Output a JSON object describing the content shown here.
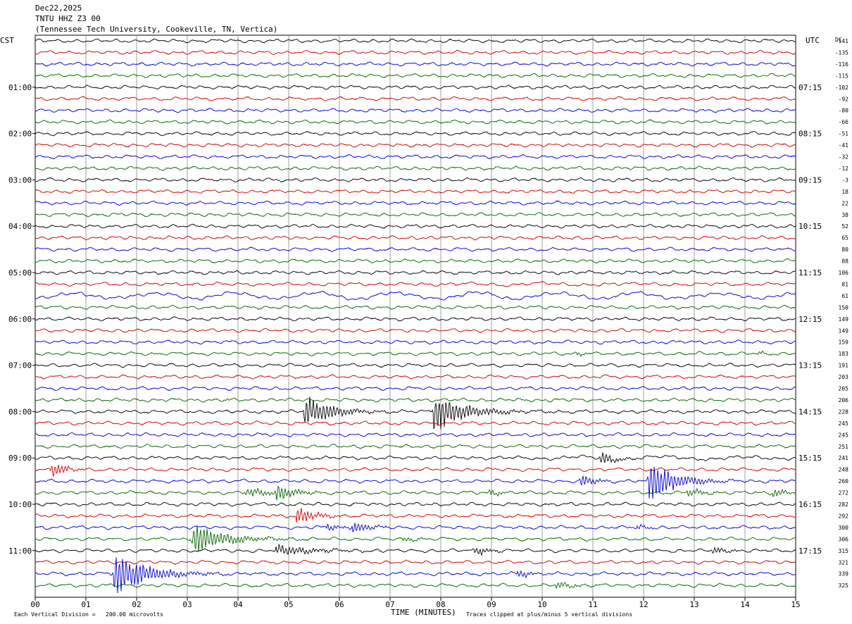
{
  "header": {
    "date": "Dec22,2025",
    "station": "TNTU HHZ Z3 00",
    "location": "(Tennessee Tech University, Cookeville, TN, Vertica)"
  },
  "left_axis_label": "CST",
  "right_axis_label": "UTC",
  "dc_label": "DC",
  "footer": {
    "scale_prefix": "Each Vertical Division =",
    "scale_value": "200.00 microvolts",
    "clip_note": "Traces clipped at plus/minus 5 vertical divisions",
    "xlabel": "TIME (MINUTES)"
  },
  "colors": {
    "row_cycle": [
      "#000000",
      "#cc0000",
      "#0000cc",
      "#006600"
    ],
    "grid": "#888888"
  },
  "chart_data": {
    "type": "line",
    "subtype": "helicorder",
    "x_range_minutes": [
      0,
      15
    ],
    "x_tick_labels": [
      "00",
      "01",
      "02",
      "03",
      "04",
      "05",
      "06",
      "07",
      "08",
      "09",
      "10",
      "11",
      "12",
      "13",
      "14",
      "15"
    ],
    "row_minutes": 15,
    "row_count": 48,
    "left_time_labels": [
      {
        "row": 4,
        "text": "01:00"
      },
      {
        "row": 8,
        "text": "02:00"
      },
      {
        "row": 12,
        "text": "03:00"
      },
      {
        "row": 16,
        "text": "04:00"
      },
      {
        "row": 20,
        "text": "05:00"
      },
      {
        "row": 24,
        "text": "06:00"
      },
      {
        "row": 28,
        "text": "07:00"
      },
      {
        "row": 32,
        "text": "08:00"
      },
      {
        "row": 36,
        "text": "09:00"
      },
      {
        "row": 40,
        "text": "10:00"
      },
      {
        "row": 44,
        "text": "11:00"
      }
    ],
    "right_time_labels": [
      {
        "row": 4,
        "text": "07:15"
      },
      {
        "row": 8,
        "text": "08:15"
      },
      {
        "row": 12,
        "text": "09:15"
      },
      {
        "row": 16,
        "text": "10:15"
      },
      {
        "row": 20,
        "text": "11:15"
      },
      {
        "row": 24,
        "text": "12:15"
      },
      {
        "row": 28,
        "text": "13:15"
      },
      {
        "row": 32,
        "text": "14:15"
      },
      {
        "row": 36,
        "text": "15:15"
      },
      {
        "row": 40,
        "text": "16:15"
      },
      {
        "row": 44,
        "text": "17:15"
      }
    ],
    "dc_offsets": [
      "-141",
      "-135",
      "-116",
      "-115",
      "-102",
      "-92",
      "-80",
      "-66",
      "-51",
      "-41",
      "-32",
      "-12",
      "-3",
      "18",
      "22",
      "38",
      "52",
      "65",
      "80",
      "88",
      "106",
      "81",
      "61",
      "150",
      "149",
      "149",
      "159",
      "183",
      "191",
      "203",
      "205",
      "206",
      "228",
      "245",
      "245",
      "251",
      "241",
      "248",
      "260",
      "272",
      "282",
      "292",
      "300",
      "306",
      "315",
      "321",
      "339",
      "325"
    ],
    "events": [
      {
        "row": 21,
        "minute": 10.5,
        "amp": 0.35,
        "dur": 3.0,
        "note": "low-frequency swell"
      },
      {
        "row": 22,
        "minute": 7.5,
        "amp": 0.9,
        "dur": 15,
        "note": "long-period wave train"
      },
      {
        "row": 27,
        "minute": 10.7,
        "amp": 0.35,
        "dur": 0.3
      },
      {
        "row": 27,
        "minute": 14.3,
        "amp": 0.35,
        "dur": 0.3
      },
      {
        "row": 31,
        "minute": 3.8,
        "amp": 0.3,
        "dur": 0.3
      },
      {
        "row": 32,
        "minute": 5.35,
        "amp": 4.0,
        "dur": 0.8
      },
      {
        "row": 32,
        "minute": 7.9,
        "amp": 5.0,
        "dur": 0.9
      },
      {
        "row": 36,
        "minute": 11.2,
        "amp": 1.5,
        "dur": 0.4
      },
      {
        "row": 36,
        "minute": 12.2,
        "amp": 0.6,
        "dur": 2.8
      },
      {
        "row": 37,
        "minute": 0.35,
        "amp": 1.8,
        "dur": 0.4
      },
      {
        "row": 38,
        "minute": 10.8,
        "amp": 1.5,
        "dur": 0.4
      },
      {
        "row": 38,
        "minute": 12.15,
        "amp": 5.0,
        "dur": 0.8
      },
      {
        "row": 39,
        "minute": 4.2,
        "amp": 1.0,
        "dur": 0.7
      },
      {
        "row": 39,
        "minute": 4.8,
        "amp": 1.8,
        "dur": 0.5
      },
      {
        "row": 39,
        "minute": 9.0,
        "amp": 0.8,
        "dur": 0.3
      },
      {
        "row": 39,
        "minute": 12.9,
        "amp": 1.0,
        "dur": 0.5
      },
      {
        "row": 39,
        "minute": 14.6,
        "amp": 0.9,
        "dur": 0.4
      },
      {
        "row": 41,
        "minute": 5.2,
        "amp": 2.0,
        "dur": 0.5
      },
      {
        "row": 42,
        "minute": 5.8,
        "amp": 0.8,
        "dur": 0.4
      },
      {
        "row": 42,
        "minute": 6.3,
        "amp": 1.2,
        "dur": 0.5
      },
      {
        "row": 42,
        "minute": 11.9,
        "amp": 0.7,
        "dur": 0.3
      },
      {
        "row": 43,
        "minute": 3.15,
        "amp": 4.0,
        "dur": 0.9
      },
      {
        "row": 43,
        "minute": 7.3,
        "amp": 0.5,
        "dur": 0.5
      },
      {
        "row": 44,
        "minute": 4.8,
        "amp": 1.2,
        "dur": 1.2
      },
      {
        "row": 44,
        "minute": 8.7,
        "amp": 1.0,
        "dur": 0.4
      },
      {
        "row": 44,
        "minute": 13.4,
        "amp": 1.0,
        "dur": 0.4
      },
      {
        "row": 46,
        "minute": 1.6,
        "amp": 5.0,
        "dur": 1.0
      },
      {
        "row": 46,
        "minute": 9.55,
        "amp": 0.9,
        "dur": 0.4
      },
      {
        "row": 47,
        "minute": 10.3,
        "amp": 0.8,
        "dur": 0.5
      }
    ]
  }
}
